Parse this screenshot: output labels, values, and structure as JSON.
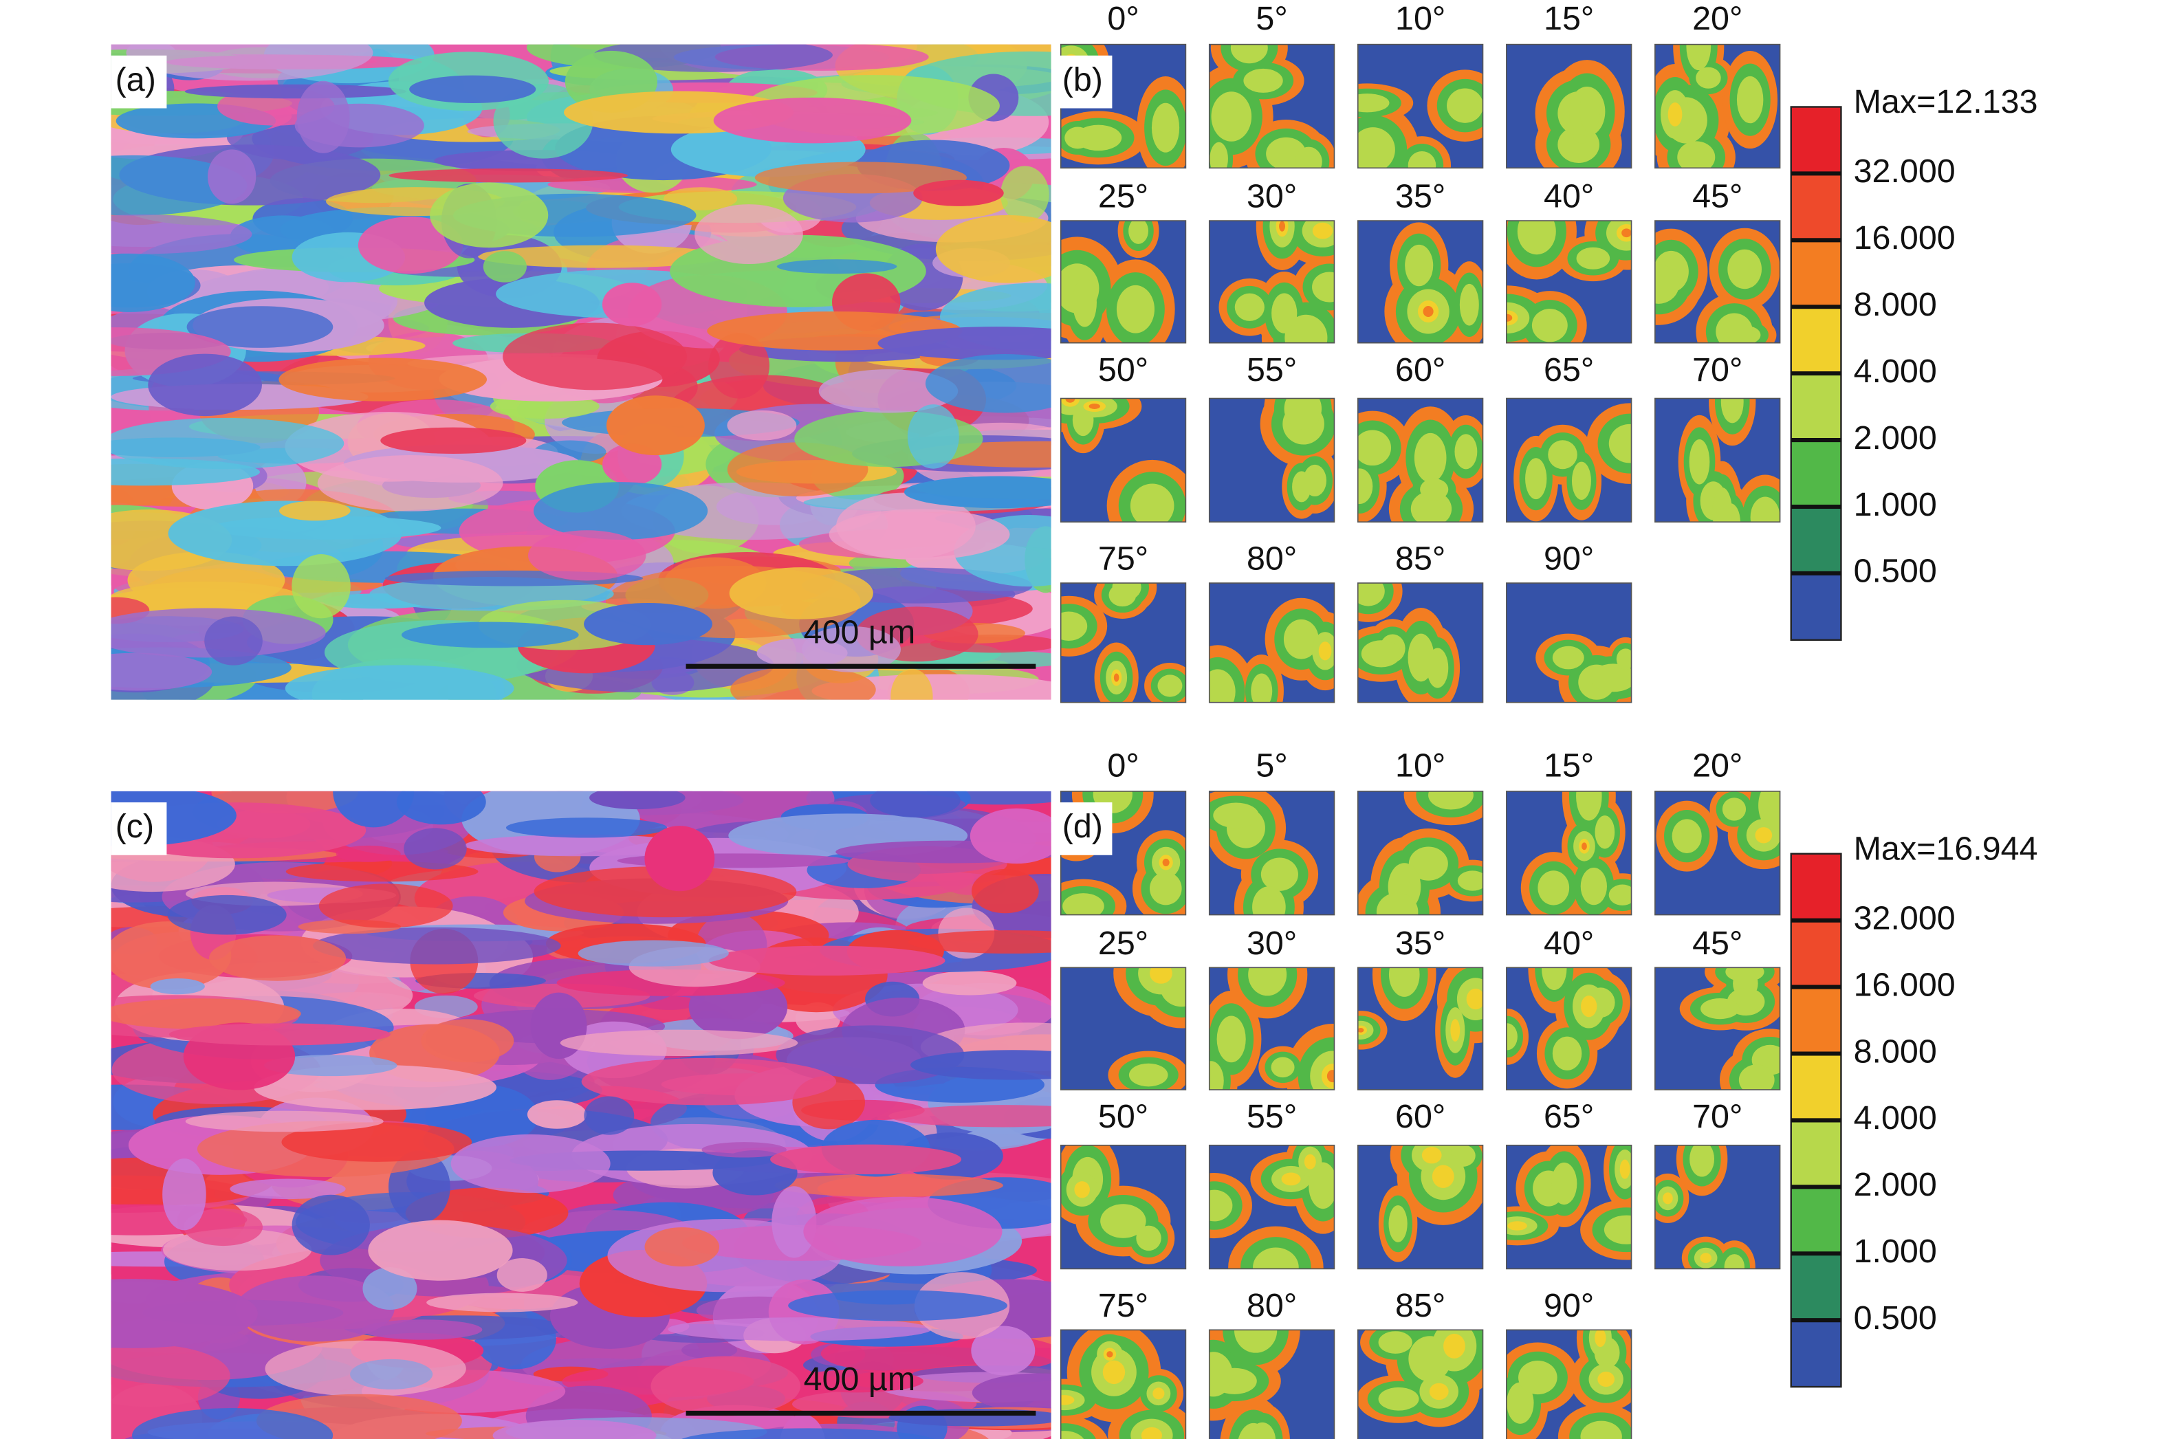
{
  "panels": [
    {
      "map": {
        "label": "(a)",
        "scale_bar": "400 µm"
      },
      "odf": {
        "label": "(b)",
        "angles": [
          "0°",
          "5°",
          "10°",
          "15°",
          "20°",
          "25°",
          "30°",
          "35°",
          "40°",
          "45°",
          "50°",
          "55°",
          "60°",
          "65°",
          "70°",
          "75°",
          "80°",
          "85°",
          "90°"
        ],
        "legend": {
          "max": "Max=12.133",
          "levels": [
            "32.000",
            "16.000",
            "8.000",
            "4.000",
            "2.000",
            "1.000",
            "0.500"
          ],
          "colors": [
            "#e62129",
            "#ee4a2b",
            "#f37d22",
            "#f1d02c",
            "#b7d84b",
            "#52b848",
            "#2c8a5f",
            "#3552a8"
          ]
        }
      }
    },
    {
      "map": {
        "label": "(c)",
        "scale_bar": "400 µm"
      },
      "odf": {
        "label": "(d)",
        "angles": [
          "0°",
          "5°",
          "10°",
          "15°",
          "20°",
          "25°",
          "30°",
          "35°",
          "40°",
          "45°",
          "50°",
          "55°",
          "60°",
          "65°",
          "70°",
          "75°",
          "80°",
          "85°",
          "90°"
        ],
        "legend": {
          "max": "Max=16.944",
          "levels": [
            "32.000",
            "16.000",
            "8.000",
            "4.000",
            "2.000",
            "1.000",
            "0.500"
          ],
          "colors": [
            "#e62129",
            "#ee4a2b",
            "#f37d22",
            "#f1d02c",
            "#b7d84b",
            "#52b848",
            "#2c8a5f",
            "#3552a8"
          ]
        }
      }
    }
  ]
}
